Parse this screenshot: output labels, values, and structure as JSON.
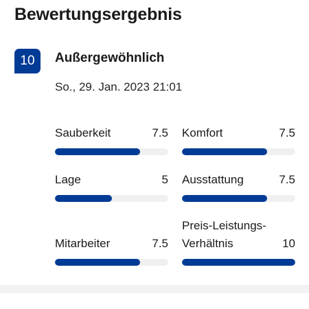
{
  "section": {
    "title": "Bewertungsergebnis"
  },
  "score": {
    "value": "10",
    "label": "Außergewöhnlich",
    "date": "So., 29. Jan. 2023 21:01",
    "badge_color": "#003b95"
  },
  "max_rating": 10,
  "categories": [
    {
      "name": "Sauberkeit",
      "value": "7.5",
      "rating": 7.5
    },
    {
      "name": "Komfort",
      "value": "7.5",
      "rating": 7.5
    },
    {
      "name": "Lage",
      "value": "5",
      "rating": 5
    },
    {
      "name": "Ausstattung",
      "value": "7.5",
      "rating": 7.5
    },
    {
      "name": "Mitarbeiter",
      "value": "7.5",
      "rating": 7.5
    },
    {
      "name": "Preis-Leistungs-Verhältnis",
      "value": "10",
      "rating": 10
    }
  ],
  "colors": {
    "bar_fill": "#003b95",
    "bar_track": "#f0f0f0"
  }
}
